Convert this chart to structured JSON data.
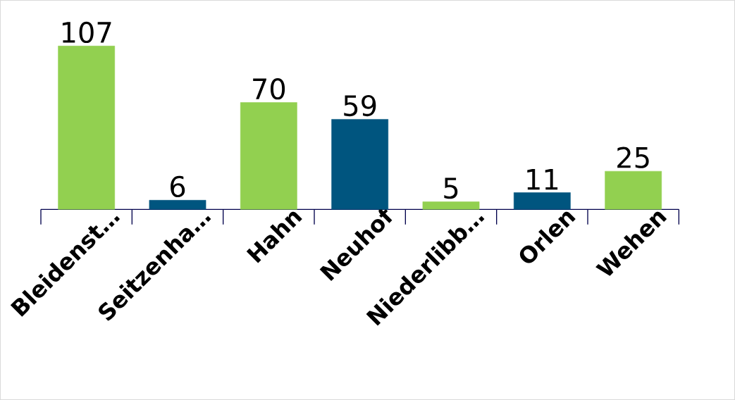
{
  "chart_data": {
    "type": "bar",
    "categories": [
      "Bleidenst…",
      "Seitzenha…",
      "Hahn",
      "Neuhof",
      "Niederlibb…",
      "Orlen",
      "Wehen"
    ],
    "values": [
      107,
      6,
      70,
      59,
      5,
      11,
      25
    ],
    "colors": [
      "#92d050",
      "#00557f",
      "#92d050",
      "#00557f",
      "#92d050",
      "#00557f",
      "#92d050"
    ],
    "data_labels": true
  }
}
